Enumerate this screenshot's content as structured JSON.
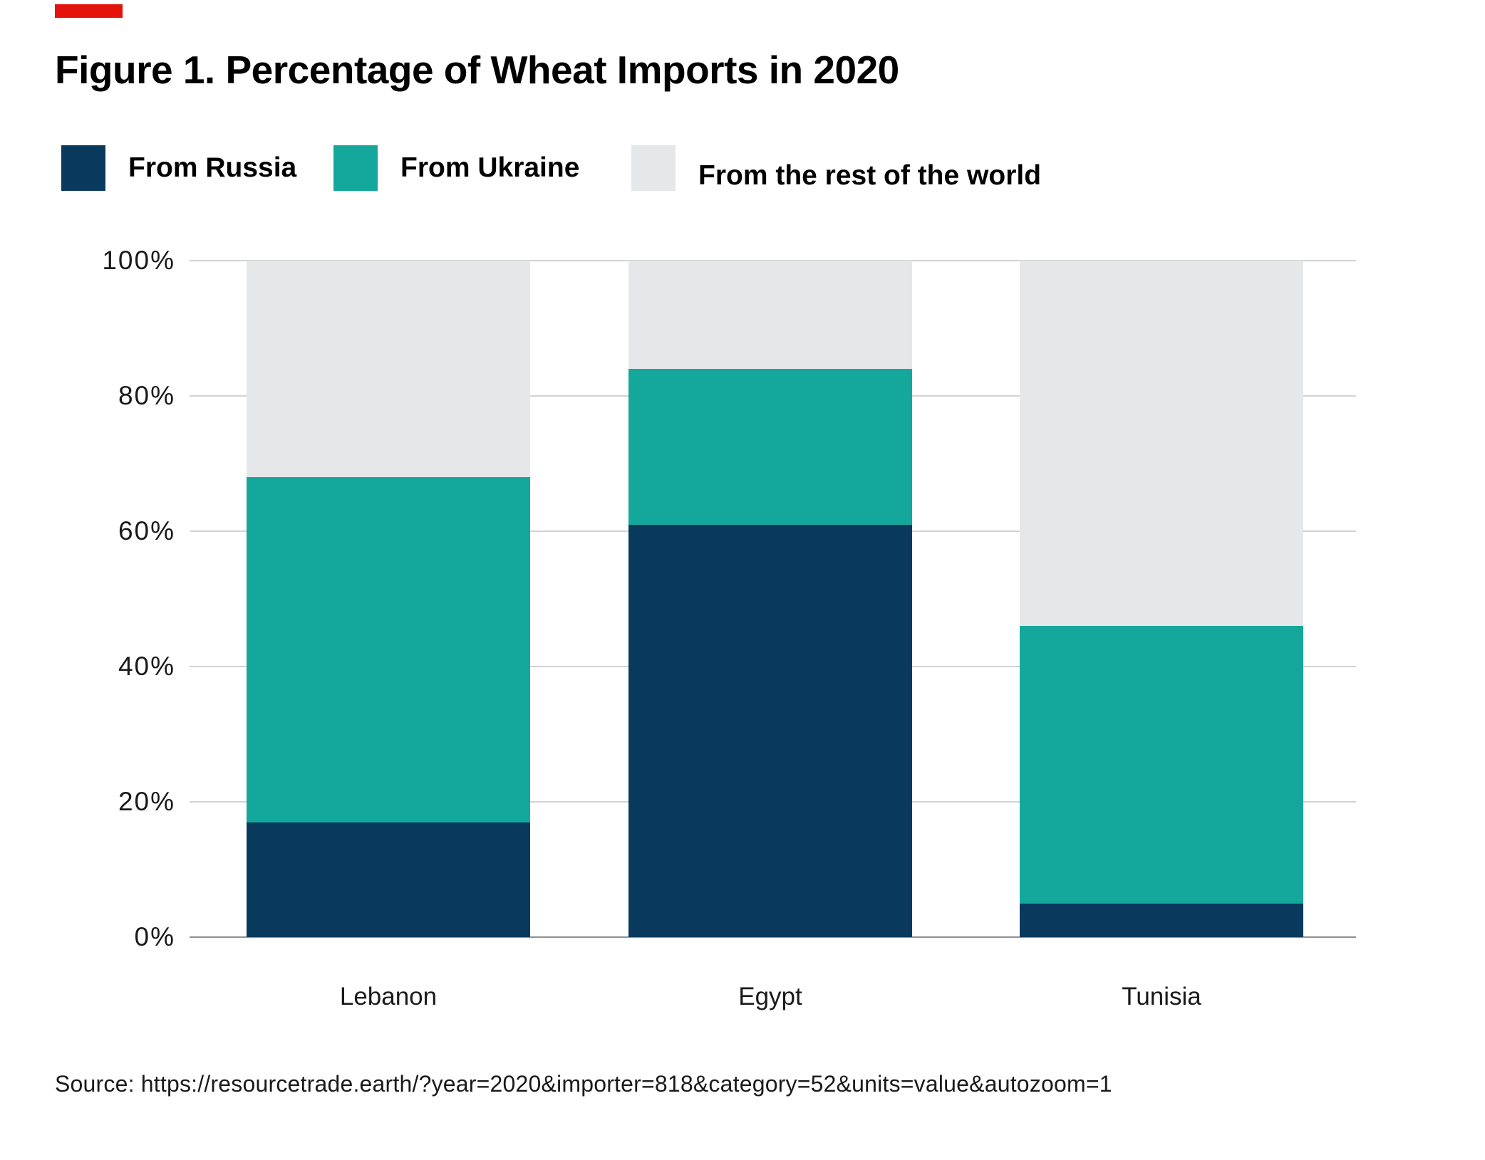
{
  "accent": {
    "color": "#e3120b"
  },
  "title": "Figure 1. Percentage of Wheat Imports in 2020",
  "legend": [
    {
      "label": "From Russia",
      "color": "#093a5d"
    },
    {
      "label": "From Ukraine",
      "color": "#14a89c"
    },
    {
      "label": "From the rest of the world",
      "color": "#e6e7e8"
    }
  ],
  "source": "Source: https://resourcetrade.earth/?year=2020&importer=818&category=52&units=value&autozoom=1",
  "chart_data": {
    "type": "bar",
    "stacked": true,
    "title": "Figure 1. Percentage of Wheat Imports in 2020",
    "categories": [
      "Lebanon",
      "Egypt",
      "Tunisia"
    ],
    "series": [
      {
        "name": "From Russia",
        "color": "#093a5d",
        "values": [
          17,
          61,
          5
        ]
      },
      {
        "name": "From Ukraine",
        "color": "#14a89c",
        "values": [
          51,
          23,
          41
        ]
      },
      {
        "name": "From the rest of the world",
        "color": "#e6e7e8",
        "values": [
          32,
          16,
          54
        ]
      }
    ],
    "y_tick_labels": [
      "100%",
      "80%",
      "60%",
      "40%",
      "20%",
      "0%"
    ],
    "y_tick_values": [
      100,
      80,
      60,
      40,
      20,
      0
    ],
    "ylim": [
      0,
      100
    ],
    "xlabel": "",
    "ylabel": "",
    "grid": true,
    "gridline_color": "#d2d2d2",
    "baseline_color": "#8f9193",
    "legend_position": "top"
  }
}
